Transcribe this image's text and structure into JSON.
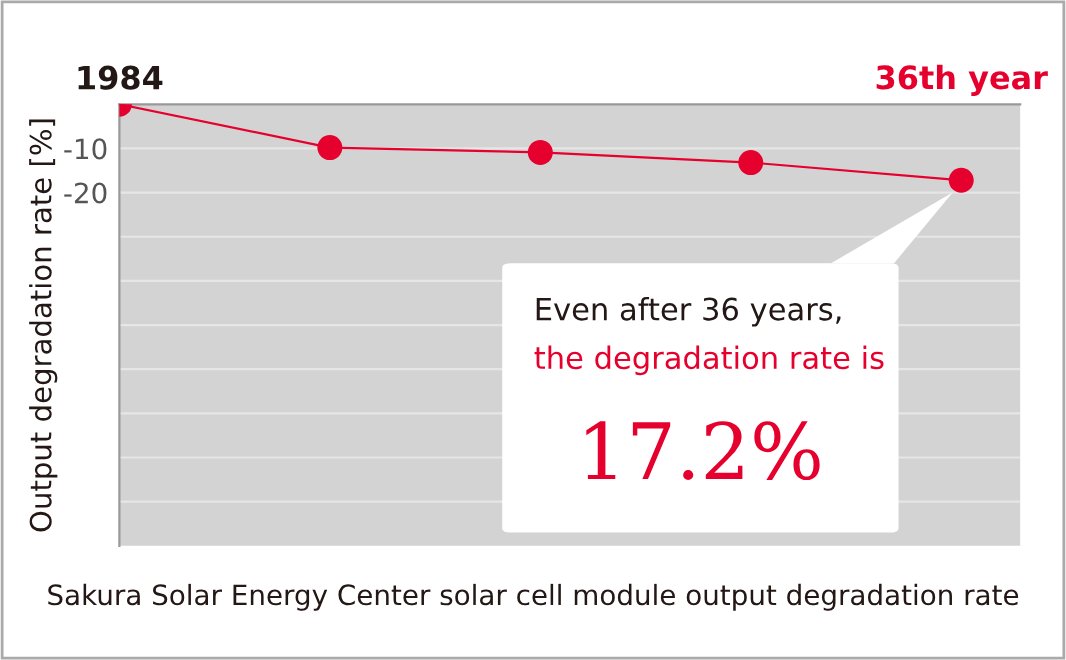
{
  "chart_data": {
    "type": "line",
    "ylabel": "Output degradation rate [%]",
    "categories": [
      "1984",
      null,
      null,
      null,
      "36th year"
    ],
    "series": [
      {
        "color": "#e6002d",
        "values": [
          0,
          -9.8,
          -10.9,
          -13.2,
          -17.2
        ]
      }
    ],
    "ylim": [
      -100,
      0
    ],
    "yticks": [
      {
        "value": -90,
        "label": null
      },
      {
        "value": -80,
        "label": null
      },
      {
        "value": -70,
        "label": null
      },
      {
        "value": -60,
        "label": null
      },
      {
        "value": -50,
        "label": null
      },
      {
        "value": -40,
        "label": null
      },
      {
        "value": -30,
        "label": null
      },
      -20,
      -10
    ],
    "grid": "y",
    "marker": "circle",
    "line_style": "solid",
    "legend": false,
    "annotations": [
      "Even after 36 years,",
      "the degradation rate is",
      "17.2%",
      "Sakura Solar Energy Center solar cell module output degradation rate"
    ]
  }
}
